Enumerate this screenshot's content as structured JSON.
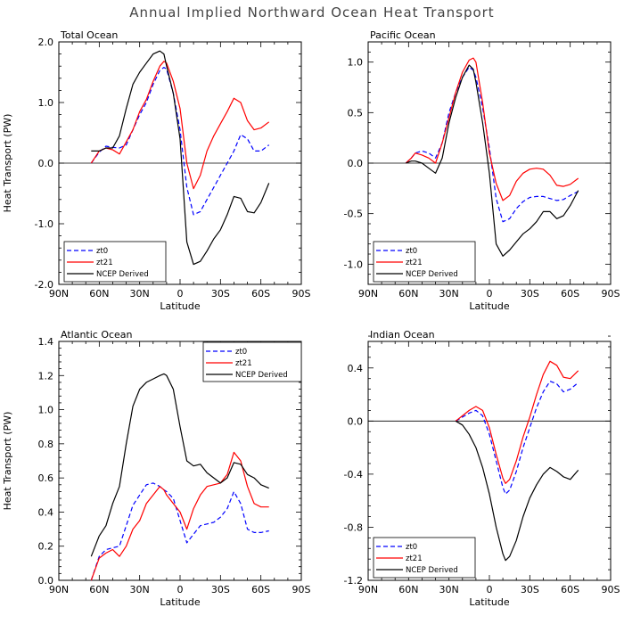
{
  "figure_title": "Annual Implied Northward Ocean Heat Transport",
  "chart_data": [
    {
      "type": "line",
      "title": "Total Ocean",
      "xlabel": "Latitude",
      "ylabel": "Heat Transport (PW)",
      "xlim": [
        -90,
        90
      ],
      "ylim": [
        -2.0,
        2.0
      ],
      "yticks": [
        -2.0,
        -1.0,
        0.0,
        1.0,
        2.0
      ],
      "ytick_labels": [
        "-2.0",
        "-1.0",
        "0.0",
        "1.0",
        "2.0"
      ],
      "xticks": [
        -90,
        -60,
        -30,
        0,
        30,
        60,
        90
      ],
      "xtick_labels": [
        "90N",
        "60N",
        "30N",
        "0",
        "30S",
        "60S",
        "90S"
      ],
      "zero_line": true,
      "legend_position": "bottom-left",
      "series": [
        {
          "name": "zt0",
          "color": "#0000ff",
          "dash": "dashed",
          "x": [
            -66,
            -60,
            -55,
            -50,
            -45,
            -40,
            -35,
            -30,
            -25,
            -20,
            -15,
            -12,
            -10,
            -5,
            0,
            5,
            10,
            15,
            20,
            25,
            30,
            35,
            40,
            45,
            50,
            55,
            60,
            66
          ],
          "y": [
            0.0,
            0.18,
            0.28,
            0.26,
            0.25,
            0.3,
            0.55,
            0.8,
            1.0,
            1.3,
            1.53,
            1.58,
            1.55,
            1.15,
            0.55,
            -0.4,
            -0.85,
            -0.8,
            -0.6,
            -0.4,
            -0.2,
            0.0,
            0.2,
            0.47,
            0.4,
            0.2,
            0.2,
            0.3
          ]
        },
        {
          "name": "zt21",
          "color": "#ff0000",
          "dash": "solid",
          "x": [
            -66,
            -60,
            -55,
            -50,
            -45,
            -40,
            -35,
            -30,
            -25,
            -20,
            -15,
            -12,
            -10,
            -5,
            0,
            5,
            10,
            15,
            20,
            25,
            30,
            35,
            40,
            45,
            50,
            55,
            60,
            66
          ],
          "y": [
            0.0,
            0.2,
            0.25,
            0.22,
            0.15,
            0.35,
            0.55,
            0.85,
            1.05,
            1.35,
            1.6,
            1.68,
            1.65,
            1.35,
            0.9,
            0.0,
            -0.42,
            -0.2,
            0.2,
            0.45,
            0.65,
            0.85,
            1.07,
            1.0,
            0.7,
            0.55,
            0.58,
            0.68
          ]
        },
        {
          "name": "NCEP Derived",
          "color": "#000000",
          "dash": "solid",
          "x": [
            -66,
            -60,
            -55,
            -50,
            -45,
            -40,
            -35,
            -30,
            -25,
            -20,
            -15,
            -12,
            -10,
            -5,
            0,
            5,
            10,
            15,
            20,
            25,
            30,
            35,
            40,
            45,
            50,
            55,
            60,
            66
          ],
          "y": [
            0.2,
            0.2,
            0.25,
            0.25,
            0.45,
            0.9,
            1.3,
            1.5,
            1.65,
            1.8,
            1.85,
            1.8,
            1.6,
            1.15,
            0.4,
            -1.3,
            -1.67,
            -1.62,
            -1.45,
            -1.25,
            -1.1,
            -0.85,
            -0.55,
            -0.58,
            -0.8,
            -0.82,
            -0.65,
            -0.33
          ]
        }
      ]
    },
    {
      "type": "line",
      "title": "Pacific Ocean",
      "xlabel": "Latitude",
      "ylabel": "",
      "xlim": [
        -90,
        90
      ],
      "ylim": [
        -1.2,
        1.2
      ],
      "yticks": [
        -1.0,
        -0.5,
        0.0,
        0.5,
        1.0
      ],
      "ytick_labels": [
        "-1.0",
        "-0.5",
        "0.0",
        "0.5",
        "1.0"
      ],
      "xticks": [
        -90,
        -60,
        -30,
        0,
        30,
        60,
        90
      ],
      "xtick_labels": [
        "90N",
        "60N",
        "30N",
        "0",
        "30S",
        "60S",
        "90S"
      ],
      "zero_line": true,
      "legend_position": "bottom-left",
      "series": [
        {
          "name": "zt0",
          "color": "#0000ff",
          "dash": "dashed",
          "x": [
            -62,
            -58,
            -55,
            -50,
            -45,
            -40,
            -35,
            -30,
            -25,
            -20,
            -15,
            -12,
            -10,
            -5,
            0,
            5,
            10,
            15,
            20,
            25,
            30,
            35,
            40,
            45,
            50,
            55,
            60,
            66
          ],
          "y": [
            0.0,
            0.05,
            0.1,
            0.12,
            0.1,
            0.05,
            0.2,
            0.5,
            0.7,
            0.85,
            0.95,
            0.92,
            0.85,
            0.55,
            0.15,
            -0.35,
            -0.58,
            -0.55,
            -0.45,
            -0.38,
            -0.34,
            -0.33,
            -0.33,
            -0.35,
            -0.37,
            -0.36,
            -0.32,
            -0.28
          ]
        },
        {
          "name": "zt21",
          "color": "#ff0000",
          "dash": "solid",
          "x": [
            -62,
            -58,
            -55,
            -50,
            -45,
            -40,
            -35,
            -30,
            -25,
            -20,
            -15,
            -12,
            -10,
            -5,
            0,
            5,
            10,
            15,
            20,
            25,
            30,
            35,
            40,
            45,
            50,
            55,
            60,
            66
          ],
          "y": [
            0.0,
            0.05,
            0.1,
            0.08,
            0.05,
            0.0,
            0.2,
            0.45,
            0.7,
            0.9,
            1.02,
            1.04,
            1.0,
            0.6,
            0.1,
            -0.2,
            -0.37,
            -0.32,
            -0.18,
            -0.1,
            -0.06,
            -0.05,
            -0.06,
            -0.12,
            -0.22,
            -0.23,
            -0.21,
            -0.15
          ]
        },
        {
          "name": "NCEP Derived",
          "color": "#000000",
          "dash": "solid",
          "x": [
            -62,
            -58,
            -55,
            -50,
            -45,
            -40,
            -35,
            -30,
            -25,
            -20,
            -15,
            -12,
            -10,
            -5,
            0,
            5,
            10,
            15,
            20,
            25,
            30,
            35,
            40,
            45,
            50,
            55,
            60,
            66
          ],
          "y": [
            0.0,
            0.02,
            0.02,
            0.0,
            -0.05,
            -0.1,
            0.05,
            0.4,
            0.65,
            0.85,
            0.97,
            0.93,
            0.8,
            0.4,
            -0.1,
            -0.8,
            -0.92,
            -0.86,
            -0.78,
            -0.7,
            -0.65,
            -0.58,
            -0.48,
            -0.48,
            -0.55,
            -0.52,
            -0.42,
            -0.27
          ]
        }
      ]
    },
    {
      "type": "line",
      "title": "Atlantic Ocean",
      "xlabel": "Latitude",
      "ylabel": "Heat Transport (PW)",
      "xlim": [
        -90,
        90
      ],
      "ylim": [
        0.0,
        1.4
      ],
      "yticks": [
        0.0,
        0.2,
        0.4,
        0.6,
        0.8,
        1.0,
        1.2,
        1.4
      ],
      "ytick_labels": [
        "0.0",
        "0.2",
        "0.4",
        "0.6",
        "0.8",
        "1.0",
        "1.2",
        "1.4"
      ],
      "xticks": [
        -90,
        -60,
        -30,
        0,
        30,
        60,
        90
      ],
      "xtick_labels": [
        "90N",
        "60N",
        "30N",
        "0",
        "30S",
        "60S",
        "90S"
      ],
      "zero_line": false,
      "legend_position": "top-right",
      "series": [
        {
          "name": "zt0",
          "color": "#0000ff",
          "dash": "dashed",
          "x": [
            -66,
            -60,
            -55,
            -50,
            -45,
            -40,
            -35,
            -30,
            -25,
            -20,
            -15,
            -12,
            -10,
            -5,
            0,
            5,
            10,
            15,
            20,
            25,
            30,
            35,
            40,
            45,
            50,
            55,
            60,
            66
          ],
          "y": [
            0.0,
            0.14,
            0.18,
            0.19,
            0.2,
            0.32,
            0.44,
            0.5,
            0.56,
            0.57,
            0.55,
            0.53,
            0.52,
            0.48,
            0.35,
            0.22,
            0.27,
            0.32,
            0.33,
            0.34,
            0.37,
            0.42,
            0.52,
            0.45,
            0.3,
            0.28,
            0.28,
            0.29
          ]
        },
        {
          "name": "zt21",
          "color": "#ff0000",
          "dash": "solid",
          "x": [
            -66,
            -60,
            -55,
            -50,
            -45,
            -40,
            -35,
            -30,
            -25,
            -20,
            -15,
            -12,
            -10,
            -5,
            0,
            5,
            10,
            15,
            20,
            25,
            30,
            35,
            40,
            45,
            50,
            55,
            60,
            66
          ],
          "y": [
            0.0,
            0.13,
            0.16,
            0.18,
            0.14,
            0.2,
            0.3,
            0.35,
            0.45,
            0.5,
            0.55,
            0.53,
            0.5,
            0.45,
            0.4,
            0.3,
            0.42,
            0.5,
            0.55,
            0.56,
            0.57,
            0.62,
            0.75,
            0.7,
            0.55,
            0.45,
            0.43,
            0.43
          ]
        },
        {
          "name": "NCEP Derived",
          "color": "#000000",
          "dash": "solid",
          "x": [
            -66,
            -60,
            -55,
            -50,
            -45,
            -40,
            -35,
            -30,
            -25,
            -20,
            -15,
            -12,
            -10,
            -5,
            0,
            5,
            10,
            15,
            20,
            25,
            30,
            35,
            40,
            45,
            50,
            55,
            60,
            66
          ],
          "y": [
            0.14,
            0.26,
            0.32,
            0.45,
            0.55,
            0.8,
            1.02,
            1.12,
            1.16,
            1.18,
            1.2,
            1.21,
            1.2,
            1.12,
            0.9,
            0.7,
            0.67,
            0.68,
            0.63,
            0.6,
            0.57,
            0.6,
            0.69,
            0.68,
            0.62,
            0.6,
            0.56,
            0.54
          ]
        }
      ]
    },
    {
      "type": "line",
      "title": "Indian Ocean",
      "xlabel": "Latitude",
      "ylabel": "",
      "xlim": [
        -90,
        90
      ],
      "ylim": [
        -1.2,
        0.6
      ],
      "yticks": [
        -1.2,
        -0.8,
        -0.4,
        0.0,
        0.4
      ],
      "ytick_labels": [
        "-1.2",
        "-0.8",
        "-0.4",
        "0.0",
        "0.4"
      ],
      "xticks": [
        -90,
        -60,
        -30,
        0,
        30,
        60,
        90
      ],
      "xtick_labels": [
        "90N",
        "60N",
        "30N",
        "0",
        "30S",
        "60S",
        "90S"
      ],
      "zero_line": true,
      "legend_position": "bottom-left",
      "series": [
        {
          "name": "zt0",
          "color": "#0000ff",
          "dash": "dashed",
          "x": [
            -25,
            -20,
            -15,
            -10,
            -5,
            0,
            5,
            10,
            12,
            15,
            20,
            25,
            30,
            35,
            40,
            45,
            50,
            55,
            60,
            66
          ],
          "y": [
            0.0,
            0.03,
            0.06,
            0.08,
            0.04,
            -0.1,
            -0.3,
            -0.5,
            -0.55,
            -0.52,
            -0.38,
            -0.2,
            -0.05,
            0.1,
            0.22,
            0.3,
            0.28,
            0.22,
            0.24,
            0.29
          ]
        },
        {
          "name": "zt21",
          "color": "#ff0000",
          "dash": "solid",
          "x": [
            -25,
            -20,
            -15,
            -10,
            -5,
            0,
            5,
            10,
            12,
            15,
            20,
            25,
            30,
            35,
            40,
            45,
            50,
            55,
            60,
            66
          ],
          "y": [
            0.0,
            0.04,
            0.08,
            0.11,
            0.08,
            -0.05,
            -0.25,
            -0.43,
            -0.47,
            -0.44,
            -0.3,
            -0.12,
            0.03,
            0.2,
            0.35,
            0.45,
            0.42,
            0.33,
            0.32,
            0.38
          ]
        },
        {
          "name": "NCEP Derived",
          "color": "#000000",
          "dash": "solid",
          "x": [
            -25,
            -20,
            -15,
            -10,
            -5,
            0,
            5,
            10,
            12,
            15,
            20,
            25,
            30,
            35,
            40,
            45,
            50,
            55,
            60,
            66
          ],
          "y": [
            0.0,
            -0.03,
            -0.1,
            -0.2,
            -0.35,
            -0.55,
            -0.8,
            -1.0,
            -1.05,
            -1.02,
            -0.9,
            -0.72,
            -0.58,
            -0.48,
            -0.4,
            -0.35,
            -0.38,
            -0.42,
            -0.44,
            -0.37
          ]
        }
      ]
    }
  ]
}
